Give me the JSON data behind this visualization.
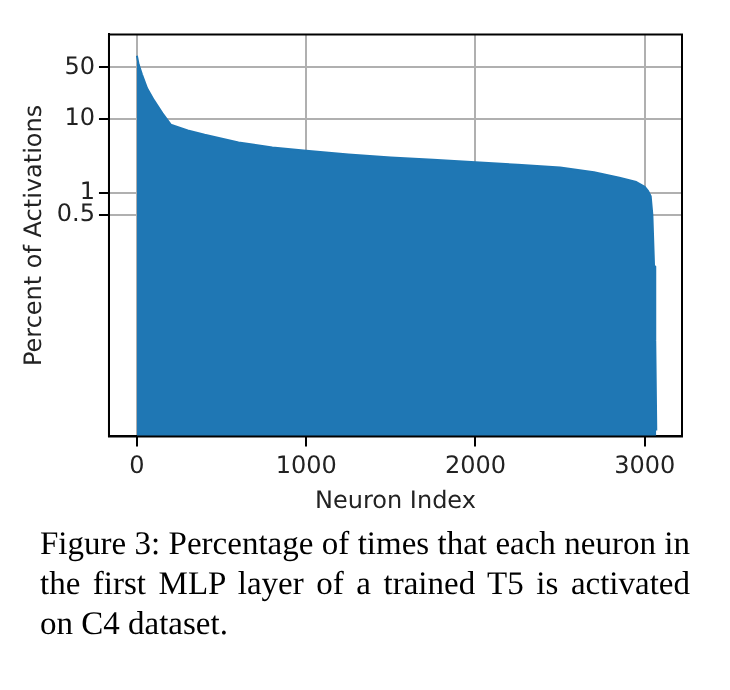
{
  "chart_data": {
    "type": "area",
    "xlabel": "Neuron Index",
    "ylabel": "Percent of Activations",
    "annotations": [
      "Figure 3: Percentage of times that each neuron in the first MLP layer of a trained T5 is activated on C4 dataset."
    ],
    "x": [
      0,
      10,
      30,
      60,
      100,
      150,
      200,
      300,
      400,
      600,
      800,
      1000,
      1250,
      1500,
      1750,
      2000,
      2250,
      2500,
      2700,
      2850,
      2950,
      3000,
      3020,
      3035,
      3045,
      3055,
      3062,
      3068
    ],
    "series": [
      {
        "color": "#1f77b4",
        "values": [
          72,
          55,
          40,
          26,
          18,
          12,
          8.4,
          7,
          6.1,
          4.8,
          4.1,
          3.7,
          3.3,
          3.0,
          2.8,
          2.6,
          2.4,
          2.2,
          1.9,
          1.6,
          1.4,
          1.2,
          1.05,
          0.9,
          0.5,
          0.1,
          0.01,
          0.0006
        ]
      }
    ],
    "xlim": [
      -165,
      3220
    ],
    "xticks": [
      0,
      1000,
      2000,
      3000
    ],
    "ylim": [
      0.0005,
      140
    ],
    "yticks": [
      0.5,
      1,
      10,
      50
    ],
    "log": "y",
    "grid": true,
    "legend": false
  }
}
